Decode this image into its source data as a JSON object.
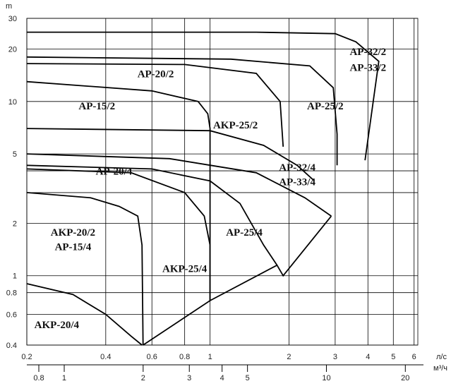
{
  "chart_data": {
    "type": "line",
    "title": "",
    "x_scale": "log",
    "y_scale": "log",
    "xlim": [
      0.2,
      6.2
    ],
    "ylim": [
      0.4,
      30
    ],
    "x_unit": "л/с",
    "x2_unit": "м³/ч",
    "y_unit": "m",
    "y_ticks": [
      {
        "v": 30,
        "label": "30"
      },
      {
        "v": 20,
        "label": "20"
      },
      {
        "v": 10,
        "label": "10"
      },
      {
        "v": 5,
        "label": "5"
      },
      {
        "v": 2,
        "label": "2"
      },
      {
        "v": 1,
        "label": "1"
      },
      {
        "v": 0.8,
        "label": "0.8"
      },
      {
        "v": 0.6,
        "label": "0.6"
      },
      {
        "v": 0.4,
        "label": "0.4"
      }
    ],
    "x_ticks": [
      {
        "v": 0.2,
        "label": "0.2"
      },
      {
        "v": 0.4,
        "label": "0.4"
      },
      {
        "v": 0.6,
        "label": "0.6"
      },
      {
        "v": 0.8,
        "label": "0.8"
      },
      {
        "v": 1,
        "label": "1"
      },
      {
        "v": 2,
        "label": "2"
      },
      {
        "v": 3,
        "label": "3"
      },
      {
        "v": 4,
        "label": "4"
      },
      {
        "v": 5,
        "label": "5"
      },
      {
        "v": 6,
        "label": "6"
      }
    ],
    "x2_ticks": [
      {
        "v": 0.8,
        "label": "0.8"
      },
      {
        "v": 1,
        "label": "1"
      },
      {
        "v": 2,
        "label": "2"
      },
      {
        "v": 3,
        "label": "3"
      },
      {
        "v": 4,
        "label": "4"
      },
      {
        "v": 5,
        "label": "5"
      },
      {
        "v": 10,
        "label": "10"
      },
      {
        "v": 20,
        "label": "20"
      }
    ],
    "series": [
      {
        "name": "AKP-20/4",
        "points": [
          [
            0.2,
            0.9
          ],
          [
            0.3,
            0.78
          ],
          [
            0.4,
            0.6
          ],
          [
            0.5,
            0.45
          ],
          [
            0.55,
            0.4
          ]
        ]
      },
      {
        "name": "AKP-20/2 AP-15/4",
        "points": [
          [
            0.2,
            3.0
          ],
          [
            0.35,
            2.8
          ],
          [
            0.45,
            2.5
          ],
          [
            0.53,
            2.2
          ],
          [
            0.55,
            1.5
          ],
          [
            0.555,
            0.4
          ]
        ]
      },
      {
        "name": "AKP-25/4",
        "points": [
          [
            0.2,
            4.1
          ],
          [
            0.5,
            3.9
          ],
          [
            0.8,
            3.0
          ],
          [
            0.95,
            2.2
          ],
          [
            1.0,
            1.5
          ],
          [
            1.0,
            0.72
          ]
        ]
      },
      {
        "name": "AP-25/4",
        "points": [
          [
            0.2,
            4.3
          ],
          [
            0.6,
            4.1
          ],
          [
            1.0,
            3.5
          ],
          [
            1.3,
            2.6
          ],
          [
            1.6,
            1.5
          ],
          [
            1.8,
            1.15
          ]
        ]
      },
      {
        "name": "AP-32/4 AP-33/4",
        "points": [
          [
            0.2,
            5.0
          ],
          [
            0.7,
            4.7
          ],
          [
            1.5,
            3.9
          ],
          [
            2.3,
            2.8
          ],
          [
            2.9,
            2.2
          ]
        ]
      },
      {
        "name": "AP-15/2",
        "points": [
          [
            0.2,
            13.0
          ],
          [
            0.6,
            11.5
          ],
          [
            0.9,
            10.0
          ],
          [
            0.98,
            8.5
          ],
          [
            1.0,
            7.0
          ],
          [
            1.0,
            0.72
          ]
        ]
      },
      {
        "name": "AKP-25/2",
        "points": [
          [
            0.2,
            7.0
          ],
          [
            1.0,
            6.8
          ],
          [
            1.6,
            5.6
          ],
          [
            2.15,
            4.3
          ],
          [
            2.5,
            3.5
          ]
        ]
      },
      {
        "name": "AP-20/2",
        "points": [
          [
            0.2,
            16.5
          ],
          [
            0.8,
            16.3
          ],
          [
            1.5,
            14.5
          ],
          [
            1.85,
            10.0
          ],
          [
            1.9,
            5.5
          ]
        ]
      },
      {
        "name": "AP-25/2",
        "points": [
          [
            0.2,
            18.0
          ],
          [
            1.2,
            17.5
          ],
          [
            2.4,
            16.0
          ],
          [
            2.95,
            12.0
          ],
          [
            3.05,
            6.5
          ],
          [
            3.05,
            4.3
          ]
        ]
      },
      {
        "name": "AP-32/2 AP-33/2",
        "points": [
          [
            0.2,
            25.0
          ],
          [
            1.5,
            25.0
          ],
          [
            3.0,
            24.5
          ],
          [
            3.6,
            22.0
          ],
          [
            4.4,
            17.0
          ],
          [
            3.9,
            4.6
          ]
        ]
      }
    ],
    "envelope": [
      [
        0.555,
        0.4
      ],
      [
        1.0,
        0.72
      ],
      [
        1.8,
        1.15
      ],
      [
        1.9,
        1.0
      ],
      [
        2.9,
        2.2
      ]
    ],
    "labels": [
      {
        "text": "AP-32/2",
        "x": 4.0,
        "y": 18.5
      },
      {
        "text": "AP-33/2",
        "x": 4.0,
        "y": 15.0
      },
      {
        "text": "AP-20/2",
        "x": 0.62,
        "y": 13.8
      },
      {
        "text": "AP-15/2",
        "x": 0.37,
        "y": 9.0
      },
      {
        "text": "AP-25/2",
        "x": 2.75,
        "y": 9.0
      },
      {
        "text": "AKP-25/2",
        "x": 1.25,
        "y": 7.0
      },
      {
        "text": "AP-32/4",
        "x": 2.15,
        "y": 4.0
      },
      {
        "text": "AP-33/4",
        "x": 2.15,
        "y": 3.3
      },
      {
        "text": "AP-20/4",
        "x": 0.43,
        "y": 3.8
      },
      {
        "text": "AKP-20/2",
        "x": 0.3,
        "y": 1.7
      },
      {
        "text": "AP-15/4",
        "x": 0.3,
        "y": 1.4
      },
      {
        "text": "AP-25/4",
        "x": 1.35,
        "y": 1.7
      },
      {
        "text": "AKP-25/4",
        "x": 0.8,
        "y": 1.05
      },
      {
        "text": "AKP-20/4",
        "x": 0.26,
        "y": 0.5
      }
    ]
  }
}
